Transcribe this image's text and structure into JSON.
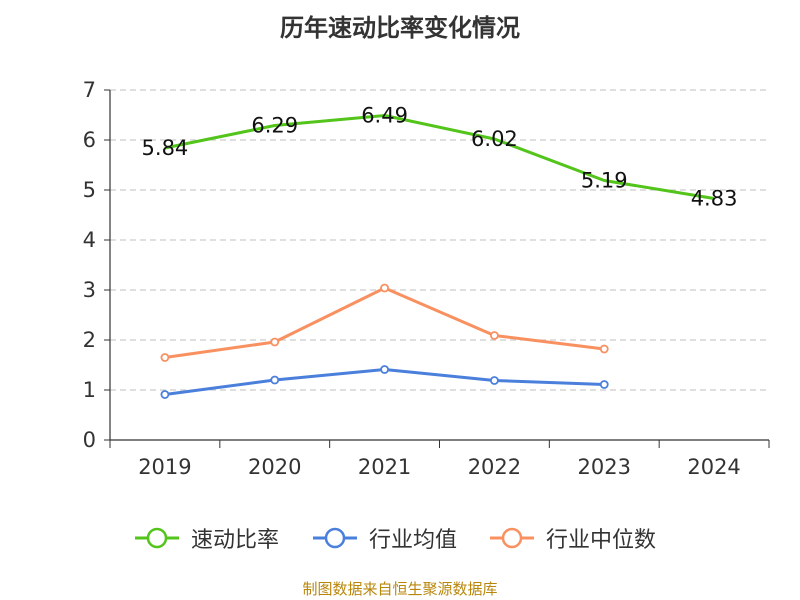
{
  "title": "历年速动比率变化情况",
  "source": "制图数据来自恒生聚源数据库",
  "chart_data": {
    "type": "line",
    "title": "历年速动比率变化情况",
    "categories": [
      "2019",
      "2020",
      "2021",
      "2022",
      "2023",
      "2024"
    ],
    "ylim": [
      0,
      7
    ],
    "yticks": [
      "0",
      "1",
      "2",
      "3",
      "4",
      "5",
      "6",
      "7"
    ],
    "grid": true,
    "legend_position": "bottom",
    "series": [
      {
        "name": "速动比率",
        "color": "#52c41a",
        "marker": "none",
        "show_labels": true,
        "values": [
          5.84,
          6.29,
          6.49,
          6.02,
          5.19,
          4.83
        ],
        "labels": [
          "5.84",
          "6.29",
          "6.49",
          "6.02",
          "5.19",
          "4.83"
        ]
      },
      {
        "name": "行业均值",
        "color": "#4a7fdc",
        "marker": "circle",
        "show_labels": false,
        "values": [
          0.91,
          1.2,
          1.41,
          1.19,
          1.11,
          null
        ]
      },
      {
        "name": "行业中位数",
        "color": "#f99060",
        "marker": "circle",
        "show_labels": false,
        "values": [
          1.65,
          1.96,
          3.04,
          2.09,
          1.82,
          null
        ]
      }
    ]
  }
}
